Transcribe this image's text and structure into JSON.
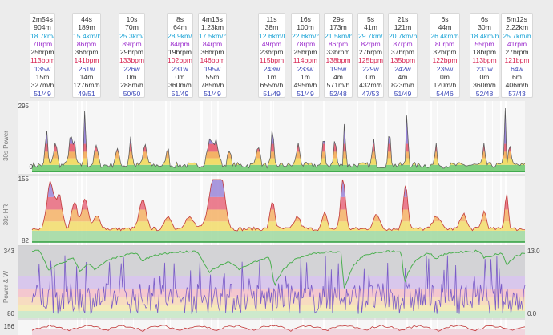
{
  "interval_cards": [
    {
      "duration": "2m54s",
      "distance": "904m",
      "speed": "18.7km/h",
      "cadence": "70rpm",
      "resp": "25brpm",
      "hr": "113bpm",
      "power": "135w",
      "climb_time": "15m",
      "vam": "327m/h",
      "count": "51/49"
    },
    {
      "duration": "44s",
      "distance": "189m",
      "speed": "15.4km/h",
      "cadence": "86rpm",
      "resp": "36brpm",
      "hr": "141bpm",
      "power": "261w",
      "climb_time": "14m",
      "vam": "1276m/h",
      "count": "49/51"
    },
    {
      "duration": "10s",
      "distance": "70m",
      "speed": "25.3km/h",
      "cadence": "89rpm",
      "resp": "29brpm",
      "hr": "133bpm",
      "power": "226w",
      "climb_time": "0m",
      "vam": "288m/h",
      "count": "50/50"
    },
    {
      "duration": "8s",
      "distance": "64m",
      "speed": "28.9km/h",
      "cadence": "84rpm",
      "resp": "19brpm",
      "hr": "102bpm",
      "power": "231w",
      "climb_time": "0m",
      "vam": "360m/h",
      "count": "51/49"
    },
    {
      "duration": "4m13s",
      "distance": "1.23km",
      "speed": "17.5km/h",
      "cadence": "84rpm",
      "resp": "36brpm",
      "hr": "146bpm",
      "power": "195w",
      "climb_time": "55m",
      "vam": "785m/h",
      "count": "51/49"
    },
    {
      "duration": "11s",
      "distance": "38m",
      "speed": "12.6km/h",
      "cadence": "49rpm",
      "resp": "23brpm",
      "hr": "115bpm",
      "power": "243w",
      "climb_time": "1m",
      "vam": "655m/h",
      "count": "51/49"
    },
    {
      "duration": "16s",
      "distance": "100m",
      "speed": "22.6km/h",
      "cadence": "78rpm",
      "resp": "25brpm",
      "hr": "114bpm",
      "power": "233w",
      "climb_time": "1m",
      "vam": "495m/h",
      "count": "51/49"
    },
    {
      "duration": "29s",
      "distance": "173m",
      "speed": "21.5km/h",
      "cadence": "86rpm",
      "resp": "33brpm",
      "hr": "138bpm",
      "power": "195w",
      "climb_time": "4m",
      "vam": "571m/h",
      "count": "52/48"
    },
    {
      "duration": "5s",
      "distance": "41m",
      "speed": "29.7km/h",
      "cadence": "82rpm",
      "resp": "27brpm",
      "hr": "125bpm",
      "power": "229w",
      "climb_time": "0m",
      "vam": "432m/h",
      "count": "47/53"
    },
    {
      "duration": "21s",
      "distance": "121m",
      "speed": "20.7km/h",
      "cadence": "87rpm",
      "resp": "37brpm",
      "hr": "135bpm",
      "power": "242w",
      "climb_time": "4m",
      "vam": "823m/h",
      "count": "51/49"
    },
    {
      "duration": "6s",
      "distance": "44m",
      "speed": "26.4km/h",
      "cadence": "80rpm",
      "resp": "32brpm",
      "hr": "122bpm",
      "power": "235w",
      "climb_time": "0m",
      "vam": "120m/h",
      "count": "54/46"
    },
    {
      "duration": "6s",
      "distance": "30m",
      "speed": "18.4km/h",
      "cadence": "55rpm",
      "resp": "18brpm",
      "hr": "113bpm",
      "power": "231w",
      "climb_time": "0m",
      "vam": "360m/h",
      "count": "52/48"
    },
    {
      "duration": "5m12s",
      "distance": "2.22km",
      "speed": "25.7km/h",
      "cadence": "41rpm",
      "resp": "27brpm",
      "hr": "121bpm",
      "power": "64w",
      "climb_time": "6m",
      "vam": "406m/h",
      "count": "57/43"
    }
  ],
  "colors": {
    "speed": "#1aa3d6",
    "cadence": "#9b2ccd",
    "hr": "#d6214f",
    "power": "#3b47b8",
    "zone_green": "#7fcf7f",
    "zone_yellow": "#f2dc6a",
    "zone_orange": "#f4b266",
    "zone_red": "#e8697d",
    "zone_purple": "#9a86d8",
    "power_line": "#2e9e3e",
    "hr_line": "#c23a3a",
    "wbal_line": "#4caf50",
    "wbal_power": "#7a5cc8"
  },
  "charts": {
    "power": {
      "label": "30s Power",
      "max": "295",
      "min": "0"
    },
    "hr": {
      "label": "30s HR",
      "max": "155",
      "min": "82"
    },
    "wbal": {
      "label": "Power & W",
      "max": "343",
      "min": "80",
      "right_max": "13.0",
      "right_min": "0.0"
    },
    "bottom": {
      "max": "156"
    }
  }
}
